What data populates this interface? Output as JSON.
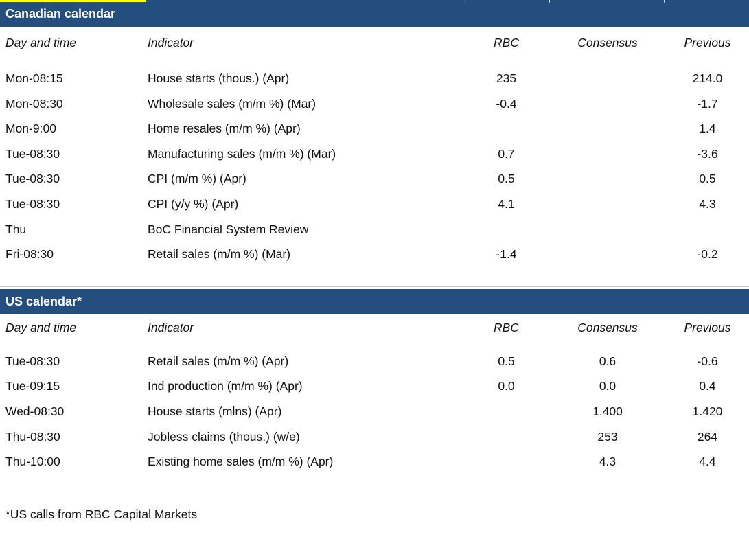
{
  "accent_color": "#234E7E",
  "highlight_color": "#FFFF00",
  "divider_color": "#C9C9C9",
  "tables": [
    {
      "title": "Canadian calendar",
      "columns": {
        "day": "Day and time",
        "indicator": "Indicator",
        "rbc": "RBC",
        "consensus": "Consensus",
        "previous": "Previous"
      },
      "rows": [
        {
          "day": "Mon-08:15",
          "indicator": "House starts (thous.) (Apr)",
          "rbc": "235",
          "consensus": "",
          "previous": "214.0"
        },
        {
          "day": "Mon-08:30",
          "indicator": "Wholesale sales (m/m %) (Mar)",
          "rbc": "-0.4",
          "consensus": "",
          "previous": "-1.7"
        },
        {
          "day": "Mon-9:00",
          "indicator": "Home resales (m/m %) (Apr)",
          "rbc": "",
          "consensus": "",
          "previous": "1.4"
        },
        {
          "day": "Tue-08:30",
          "indicator": "Manufacturing sales (m/m %) (Mar)",
          "rbc": "0.7",
          "consensus": "",
          "previous": "-3.6"
        },
        {
          "day": "Tue-08:30",
          "indicator": "CPI (m/m %) (Apr)",
          "rbc": "0.5",
          "consensus": "",
          "previous": "0.5"
        },
        {
          "day": "Tue-08:30",
          "indicator": "CPI (y/y %) (Apr)",
          "rbc": "4.1",
          "consensus": "",
          "previous": "4.3"
        },
        {
          "day": "Thu",
          "indicator": "BoC Financial System Review",
          "rbc": "",
          "consensus": "",
          "previous": ""
        },
        {
          "day": "Fri-08:30",
          "indicator": "Retail sales (m/m %) (Mar)",
          "rbc": "-1.4",
          "consensus": "",
          "previous": "-0.2"
        }
      ]
    },
    {
      "title": "US calendar*",
      "columns": {
        "day": "Day and time",
        "indicator": "Indicator",
        "rbc": "RBC",
        "consensus": "Consensus",
        "previous": "Previous"
      },
      "rows": [
        {
          "day": "Tue-08:30",
          "indicator": "Retail sales (m/m %) (Apr)",
          "rbc": "0.5",
          "consensus": "0.6",
          "previous": "-0.6"
        },
        {
          "day": "Tue-09:15",
          "indicator": "Ind production (m/m %) (Apr)",
          "rbc": "0.0",
          "consensus": "0.0",
          "previous": "0.4"
        },
        {
          "day": "Wed-08:30",
          "indicator": "House starts (mlns) (Apr)",
          "rbc": "",
          "consensus": "1.400",
          "previous": "1.420"
        },
        {
          "day": "Thu-08:30",
          "indicator": "Jobless claims (thous.) (w/e)",
          "rbc": "",
          "consensus": "253",
          "previous": "264"
        },
        {
          "day": "Thu-10:00",
          "indicator": "Existing home sales (m/m %) (Apr)",
          "rbc": "",
          "consensus": "4.3",
          "previous": "4.4"
        }
      ]
    }
  ],
  "footnote": "*US calls from RBC Capital Markets"
}
